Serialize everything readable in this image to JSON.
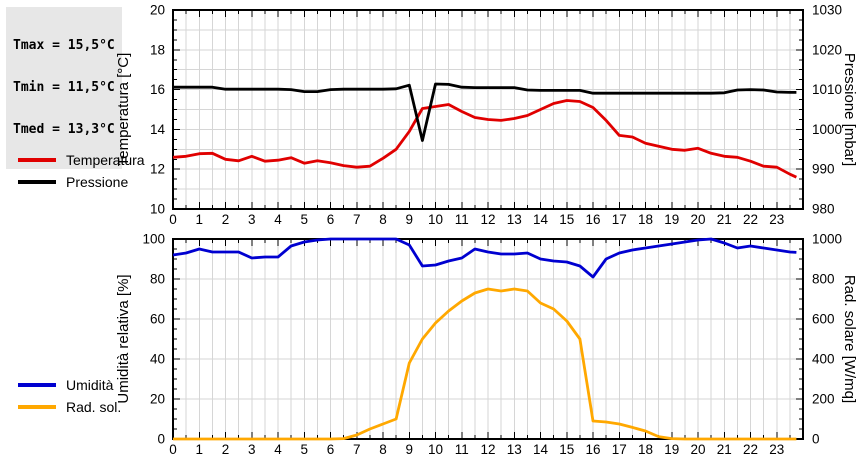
{
  "stats_box": {
    "lines": [
      "Tmax = 15,5°C",
      "Tmin = 11,5°C",
      "Tmed = 13,3°C"
    ],
    "bg": "#e7e7e7"
  },
  "colors": {
    "temperature": "#e00000",
    "pressure": "#000000",
    "humidity": "#0000d0",
    "radiation": "#ffa800",
    "grid": "#d6d6d6",
    "frame": "#000000",
    "background": "#ffffff"
  },
  "chart_data": [
    {
      "type": "line",
      "xlim": [
        0,
        24
      ],
      "x_ticks": [
        0,
        1,
        2,
        3,
        4,
        5,
        6,
        7,
        8,
        9,
        10,
        11,
        12,
        13,
        14,
        15,
        16,
        17,
        18,
        19,
        20,
        21,
        22,
        23
      ],
      "y_grid_step": 1,
      "left_axis": {
        "label": "Temperatura [°C]",
        "lim": [
          10,
          20
        ],
        "ticks": [
          10,
          12,
          14,
          16,
          18,
          20
        ]
      },
      "right_axis": {
        "label": "Pressione [mbar]",
        "lim": [
          980,
          1030
        ],
        "ticks": [
          980,
          990,
          1000,
          1010,
          1020,
          1030
        ]
      },
      "x": [
        0,
        0.5,
        1,
        1.5,
        2,
        2.5,
        3,
        3.5,
        4,
        4.5,
        5,
        5.5,
        6,
        6.5,
        7,
        7.5,
        8,
        8.5,
        9,
        9.5,
        10,
        10.5,
        11,
        11.5,
        12,
        12.5,
        13,
        13.5,
        14,
        14.5,
        15,
        15.5,
        16,
        16.5,
        17,
        17.5,
        18,
        18.5,
        19,
        19.5,
        20,
        20.5,
        21,
        21.5,
        22,
        22.5,
        23,
        23.5,
        23.75
      ],
      "series": [
        {
          "name": "Temperatura",
          "axis": "left",
          "color_key": "temperature",
          "values": [
            12.6,
            12.65,
            12.78,
            12.8,
            12.5,
            12.42,
            12.65,
            12.4,
            12.45,
            12.58,
            12.3,
            12.42,
            12.32,
            12.18,
            12.1,
            12.15,
            12.55,
            13.0,
            13.9,
            15.05,
            15.15,
            15.25,
            14.9,
            14.6,
            14.5,
            14.45,
            14.55,
            14.7,
            15.0,
            15.3,
            15.45,
            15.4,
            15.1,
            14.45,
            13.7,
            13.62,
            13.3,
            13.15,
            13.0,
            12.95,
            13.05,
            12.8,
            12.65,
            12.6,
            12.4,
            12.15,
            12.1,
            11.75,
            11.6
          ]
        },
        {
          "name": "Pressione",
          "axis": "right",
          "color_key": "pressure",
          "values": [
            1010.6,
            1010.6,
            1010.6,
            1010.6,
            1010.1,
            1010.1,
            1010.1,
            1010.1,
            1010.1,
            1010.0,
            1009.5,
            1009.5,
            1010.0,
            1010.1,
            1010.1,
            1010.1,
            1010.1,
            1010.2,
            1011.1,
            997.2,
            1011.4,
            1011.3,
            1010.6,
            1010.5,
            1010.5,
            1010.5,
            1010.5,
            1009.9,
            1009.8,
            1009.8,
            1009.8,
            1009.8,
            1009.1,
            1009.1,
            1009.1,
            1009.1,
            1009.1,
            1009.1,
            1009.1,
            1009.1,
            1009.1,
            1009.1,
            1009.2,
            1009.9,
            1010.0,
            1009.9,
            1009.4,
            1009.3,
            1009.3
          ]
        }
      ]
    },
    {
      "type": "line",
      "xlim": [
        0,
        24
      ],
      "x_ticks": [
        0,
        1,
        2,
        3,
        4,
        5,
        6,
        7,
        8,
        9,
        10,
        11,
        12,
        13,
        14,
        15,
        16,
        17,
        18,
        19,
        20,
        21,
        22,
        23
      ],
      "y_grid_step": 20,
      "left_axis": {
        "label": "Umidità relativa [%]",
        "lim": [
          0,
          100
        ],
        "ticks": [
          0,
          20,
          40,
          60,
          80,
          100
        ]
      },
      "right_axis": {
        "label": "Rad. solare [W/mq]",
        "lim": [
          0,
          1000
        ],
        "ticks": [
          0,
          200,
          400,
          600,
          800,
          1000
        ]
      },
      "x": [
        0,
        0.5,
        1,
        1.5,
        2,
        2.5,
        3,
        3.5,
        4,
        4.5,
        5,
        5.5,
        6,
        6.5,
        7,
        7.5,
        8,
        8.5,
        9,
        9.5,
        10,
        10.5,
        11,
        11.5,
        12,
        12.5,
        13,
        13.5,
        14,
        14.5,
        15,
        15.5,
        16,
        16.5,
        17,
        17.5,
        18,
        18.5,
        19,
        19.5,
        20,
        20.5,
        21,
        21.5,
        22,
        22.5,
        23,
        23.5,
        23.75
      ],
      "series": [
        {
          "name": "Umidità",
          "axis": "left",
          "color_key": "humidity",
          "values": [
            92,
            93,
            95,
            93.5,
            93.5,
            93.5,
            90.5,
            91,
            91,
            96.5,
            98.5,
            99.5,
            100,
            100,
            100,
            100,
            100,
            100,
            97,
            86.5,
            87,
            89,
            90.5,
            95,
            93.5,
            92.5,
            92.5,
            93,
            90,
            89,
            88.5,
            86.5,
            81,
            90,
            93,
            94.5,
            95.5,
            96.5,
            97.5,
            98.5,
            99.5,
            100,
            98,
            95.5,
            96.5,
            95.5,
            94.5,
            93.5,
            93.3
          ]
        },
        {
          "name": "Rad. sol.",
          "axis": "right",
          "color_key": "radiation",
          "values": [
            0,
            0,
            0,
            0,
            0,
            0,
            0,
            0,
            0,
            0,
            0,
            0,
            0,
            2,
            20,
            50,
            75,
            100,
            380,
            500,
            580,
            640,
            690,
            730,
            750,
            740,
            750,
            740,
            680,
            650,
            590,
            500,
            90,
            85,
            75,
            58,
            40,
            12,
            2,
            0,
            0,
            0,
            0,
            0,
            0,
            0,
            0,
            0,
            0
          ]
        }
      ]
    }
  ]
}
